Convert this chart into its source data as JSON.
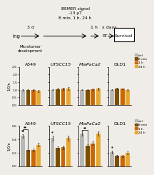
{
  "bg_color": "#f0ede8",
  "flowchart": {
    "seeding_text": "ing",
    "arrow1_label": "3 d",
    "microtumor_text": "Microtumor\ndevelopment",
    "bemer_text": "BEMER signal\n-13 µT\n8 min, 1 h, 24 h",
    "arrow2_label": "1 h",
    "rt_text": "RT",
    "arrow3_label": "x days",
    "survival_text": "Survival"
  },
  "top_charts": {
    "groups": [
      "A549",
      "UTSCC15",
      "MiaPaCa2",
      "DLD1"
    ],
    "bar_labels": [
      "ctrl",
      "8 min",
      "1 h",
      "24 h"
    ],
    "bar_colors": [
      "#b8b8b8",
      "#7a4f00",
      "#cc6600",
      "#e8a830"
    ],
    "ylabel": "1/0/n",
    "ylim": [
      0,
      2.5
    ],
    "yticks": [
      0.0,
      0.5,
      1.0,
      1.5,
      2.0,
      2.5
    ],
    "data": [
      [
        1.0,
        1.0,
        1.0,
        0.93
      ],
      [
        1.0,
        1.05,
        1.06,
        1.08
      ],
      [
        1.0,
        1.0,
        1.02,
        1.06
      ],
      [
        1.0,
        1.08,
        1.06,
        0.98
      ]
    ],
    "errors": [
      [
        0.04,
        0.04,
        0.04,
        0.07
      ],
      [
        0.03,
        0.07,
        0.06,
        0.09
      ],
      [
        0.03,
        0.04,
        0.05,
        0.05
      ],
      [
        0.03,
        0.05,
        0.04,
        0.04
      ]
    ],
    "significance": {}
  },
  "bottom_charts": {
    "groups": [
      "A549",
      "UTSCC15",
      "MiaPaCa2",
      "DLD1"
    ],
    "bar_labels": [
      "ctrl",
      "8 min",
      "1 h",
      "24 h"
    ],
    "bar_colors": [
      "#b8b8b8",
      "#7a4f00",
      "#cc6600",
      "#e8a830"
    ],
    "ylabel": "1/0/n",
    "ylim": [
      0,
      0.6
    ],
    "yticks": [
      0.0,
      0.2,
      0.4,
      0.6
    ],
    "data": [
      [
        0.45,
        0.24,
        0.24,
        0.32
      ],
      [
        0.42,
        0.27,
        0.28,
        0.42
      ],
      [
        0.49,
        0.3,
        0.34,
        0.49
      ],
      [
        0.21,
        0.15,
        0.15,
        0.2
      ]
    ],
    "errors": [
      [
        0.025,
        0.02,
        0.018,
        0.028
      ],
      [
        0.04,
        0.025,
        0.03,
        0.038
      ],
      [
        0.032,
        0.025,
        0.027,
        0.03
      ],
      [
        0.02,
        0.015,
        0.016,
        0.02
      ]
    ],
    "sig_A549_bar1": "**",
    "sig_A549_bar2": "**",
    "sig_UTSCC15": "*",
    "sig_MiaPaCa2": "**",
    "sig_DLD1": "*"
  }
}
